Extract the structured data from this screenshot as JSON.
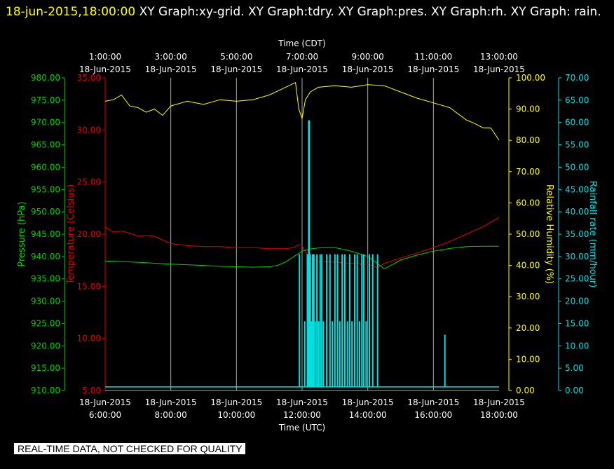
{
  "header": {
    "timestamp": "18-jun-2015,18:00:00",
    "title": " XY Graph:xy-grid.  XY Graph:tdry.  XY Graph:pres.  XY Graph:rh.  XY Graph: rain."
  },
  "footer_note": "REAL-TIME DATA, NOT CHECKED FOR QUALITY",
  "colors": {
    "background": "#000000",
    "grid": "#aaaaaa",
    "temperature": "#e00000",
    "pressure": "#00d000",
    "humidity": "#ffff00",
    "rainfall": "#00e0e0",
    "text": "#ffffff"
  },
  "chart_data": {
    "type": "line",
    "top_axis": {
      "title": "Time (CDT)",
      "ticks": [
        {
          "time": "1:00:00",
          "date": "18-Jun-2015"
        },
        {
          "time": "3:00:00",
          "date": "18-Jun-2015"
        },
        {
          "time": "5:00:00",
          "date": "18-Jun-2015"
        },
        {
          "time": "7:00:00",
          "date": "18-Jun-2015"
        },
        {
          "time": "9:00:00",
          "date": "18-Jun-2015"
        },
        {
          "time": "11:00:00",
          "date": "18-Jun-2015"
        },
        {
          "time": "13:00:00",
          "date": "18-Jun-2015"
        }
      ]
    },
    "bottom_axis": {
      "title": "Time (UTC)",
      "range": [
        "18-Jun-2015 6:00:00",
        "18-Jun-2015 18:00:00"
      ],
      "ticks": [
        {
          "time": "6:00:00",
          "date": "18-Jun-2015"
        },
        {
          "time": "8:00:00",
          "date": "18-Jun-2015"
        },
        {
          "time": "10:00:00",
          "date": "18-Jun-2015"
        },
        {
          "time": "12:00:00",
          "date": "18-Jun-2015"
        },
        {
          "time": "14:00:00",
          "date": "18-Jun-2015"
        },
        {
          "time": "16:00:00",
          "date": "18-Jun-2015"
        },
        {
          "time": "18:00:00",
          "date": "18-Jun-2015"
        }
      ]
    },
    "axes": {
      "pressure": {
        "label": "Pressure (hPa)",
        "range": [
          910,
          980
        ],
        "ticks": [
          "910.00",
          "915.00",
          "920.00",
          "925.00",
          "930.00",
          "935.00",
          "940.00",
          "945.00",
          "950.00",
          "955.00",
          "960.00",
          "965.00",
          "970.00",
          "975.00",
          "980.00"
        ]
      },
      "temperature": {
        "label": "Temperature (Celsius)",
        "range": [
          5,
          35
        ],
        "ticks": [
          "5.00",
          "10.00",
          "15.00",
          "20.00",
          "25.00",
          "30.00",
          "35.00"
        ]
      },
      "humidity": {
        "label": "Relative Humidity (%)",
        "range": [
          0,
          100
        ],
        "ticks": [
          "0.00",
          "10.00",
          "20.00",
          "30.00",
          "40.00",
          "50.00",
          "60.00",
          "70.00",
          "80.00",
          "90.00",
          "100.00"
        ]
      },
      "rainfall": {
        "label": "Rainfall rate (mm/hour)",
        "range": [
          0,
          70
        ],
        "ticks": [
          "0.00",
          "5.00",
          "10.00",
          "15.00",
          "20.00",
          "25.00",
          "30.00",
          "35.00",
          "40.00",
          "45.00",
          "50.00",
          "55.00",
          "60.00",
          "65.00",
          "70.00"
        ]
      }
    },
    "grid": true,
    "series": [
      {
        "name": "Temperature (Celsius)",
        "axis": "temperature",
        "x": [
          6.0,
          6.25,
          6.5,
          6.75,
          7.0,
          7.25,
          7.5,
          8.0,
          8.5,
          9.0,
          9.5,
          10.0,
          10.5,
          11.0,
          11.5,
          11.75,
          11.9,
          12.0,
          12.1,
          12.25,
          12.5,
          13.0,
          13.5,
          14.0,
          14.3,
          14.5,
          15.0,
          15.5,
          16.0,
          16.5,
          17.0,
          17.5,
          18.0
        ],
        "y": [
          20.7,
          20.2,
          20.3,
          20.1,
          19.8,
          19.9,
          19.8,
          19.1,
          18.9,
          18.8,
          18.8,
          18.7,
          18.7,
          18.6,
          18.6,
          18.7,
          19.0,
          18.9,
          18.3,
          17.7,
          17.4,
          17.3,
          17.2,
          17.1,
          16.8,
          17.2,
          17.7,
          18.2,
          18.7,
          19.3,
          20.0,
          20.7,
          21.6
        ]
      },
      {
        "name": "Pressure (hPa)",
        "axis": "pressure",
        "x": [
          6.0,
          7.0,
          8.0,
          9.0,
          9.5,
          10.0,
          10.5,
          11.0,
          11.25,
          11.5,
          11.75,
          12.0,
          12.25,
          12.5,
          12.75,
          13.0,
          13.5,
          14.0,
          14.25,
          14.5,
          14.75,
          15.0,
          15.5,
          16.0,
          16.5,
          17.0,
          17.5,
          18.0
        ],
        "y": [
          939.0,
          938.7,
          938.3,
          938.0,
          937.8,
          937.7,
          937.6,
          937.7,
          938.0,
          938.8,
          940.0,
          941.2,
          941.7,
          941.9,
          942.0,
          942.0,
          941.2,
          940.0,
          938.7,
          937.2,
          938.2,
          939.2,
          940.3,
          941.2,
          941.8,
          942.2,
          942.3,
          942.3
        ]
      },
      {
        "name": "Relative Humidity (%)",
        "axis": "humidity",
        "x": [
          6.0,
          6.25,
          6.5,
          6.75,
          7.0,
          7.25,
          7.5,
          7.75,
          8.0,
          8.5,
          9.0,
          9.5,
          10.0,
          10.5,
          11.0,
          11.5,
          11.8,
          11.9,
          12.0,
          12.1,
          12.25,
          12.5,
          13.0,
          13.5,
          14.0,
          14.5,
          15.0,
          15.5,
          16.0,
          16.5,
          17.0,
          17.25,
          17.5,
          17.75,
          18.0
        ],
        "y": [
          92.5,
          93.0,
          94.5,
          91.0,
          90.5,
          89.0,
          90.0,
          88.0,
          91.0,
          92.5,
          91.5,
          93.0,
          92.5,
          93.0,
          94.5,
          97.0,
          98.5,
          90.0,
          87.0,
          93.0,
          95.5,
          97.0,
          97.5,
          97.0,
          97.8,
          97.5,
          95.5,
          93.5,
          92.0,
          90.0,
          87.0,
          85.0,
          84.5,
          83.5,
          80.5
        ]
      },
      {
        "name": "Rainfall rate (mm/hour)",
        "axis": "rainfall",
        "style": "bars",
        "baseline": 0.8,
        "x": [
          11.92,
          12.08,
          12.16,
          12.2,
          12.22,
          12.25,
          12.28,
          12.32,
          12.36,
          12.4,
          12.45,
          12.5,
          12.55,
          12.6,
          12.65,
          12.75,
          12.85,
          12.92,
          13.0,
          13.08,
          13.15,
          13.22,
          13.3,
          13.38,
          13.45,
          13.52,
          13.6,
          13.68,
          13.75,
          13.82,
          13.88,
          13.95,
          14.05,
          14.15,
          14.3,
          16.35
        ],
        "y": [
          30.5,
          15.5,
          30.5,
          60.5,
          60.5,
          30.5,
          15.5,
          30.5,
          30.5,
          15.5,
          30.5,
          15.5,
          30.5,
          30.5,
          15.5,
          30.5,
          30.5,
          15.5,
          30.5,
          30.5,
          15.5,
          30.5,
          30.5,
          15.5,
          30.5,
          15.5,
          30.5,
          30.5,
          15.5,
          30.5,
          30.5,
          15.5,
          30.5,
          30.5,
          30.5,
          12.5
        ]
      }
    ]
  }
}
